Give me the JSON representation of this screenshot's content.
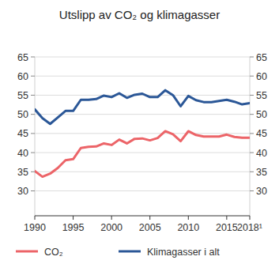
{
  "chart_data": {
    "type": "line",
    "title": "Utslipp av CO₂ og klimagasser",
    "x": [
      1990,
      1991,
      1992,
      1993,
      1994,
      1995,
      1996,
      1997,
      1998,
      1999,
      2000,
      2001,
      2002,
      2003,
      2004,
      2005,
      2006,
      2007,
      2008,
      2009,
      2010,
      2011,
      2012,
      2013,
      2014,
      2015,
      2016,
      2017,
      2018
    ],
    "series": [
      {
        "name": "CO₂",
        "color": "#ec6468",
        "values": [
          35.2,
          33.7,
          34.5,
          36.0,
          38.0,
          38.3,
          41.2,
          41.5,
          41.6,
          42.4,
          42.0,
          43.4,
          42.4,
          43.6,
          43.7,
          43.2,
          43.8,
          45.6,
          44.8,
          43.0,
          45.6,
          44.6,
          44.2,
          44.2,
          44.2,
          44.7,
          44.1,
          43.9,
          43.9
        ]
      },
      {
        "name": "Klimagasser i alt",
        "color": "#2b5797",
        "values": [
          51.3,
          49.0,
          47.5,
          49.2,
          50.9,
          50.9,
          53.8,
          53.8,
          54.0,
          54.9,
          54.5,
          55.5,
          54.3,
          55.1,
          55.4,
          54.5,
          54.5,
          56.3,
          55.0,
          52.1,
          54.8,
          53.7,
          53.2,
          53.2,
          53.5,
          53.8,
          53.3,
          52.6,
          52.9
        ]
      }
    ],
    "xlim": [
      1990,
      2018
    ],
    "xticks": [
      1990,
      1995,
      2000,
      2005,
      2010,
      2015,
      {
        "value": 2018,
        "label": "2018¹"
      }
    ],
    "ylim": [
      23.5,
      65
    ],
    "yticks": [
      30,
      35,
      40,
      45,
      50,
      55,
      60,
      65
    ],
    "grid": true,
    "legend": "bottom"
  }
}
